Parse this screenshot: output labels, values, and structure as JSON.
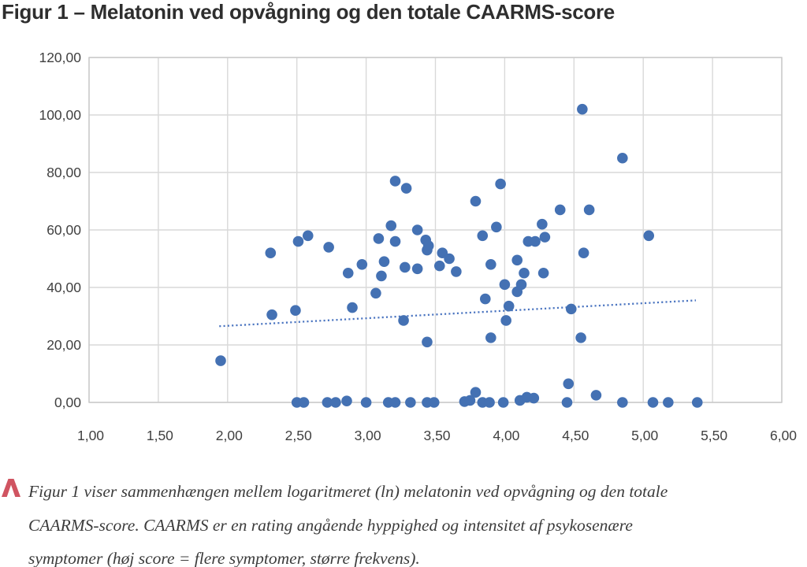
{
  "title": "Figur 1 – Melatonin ved opvågning og den totale CAARMS-score",
  "caption": {
    "marker_icon": "caret-up",
    "lines": [
      "Figur 1 viser sammenhængen mellem logaritmeret (ln) melatonin ved opvågning og den totale",
      "CAARMS-score. CAARMS er en rating angående hyppighed og intensitet af psykosenære",
      "symptomer (høj score = flere symptomer, større frekvens)."
    ]
  },
  "colors": {
    "point": "#4471b3",
    "trend": "#4a74c0",
    "grid": "#d9d9d9",
    "frame": "#c9c9c9",
    "axis_text": "#404040",
    "title_text": "#2e2e2e",
    "caption_text": "#3c3c3c",
    "caret_red": "#d05461"
  },
  "chart_data": {
    "type": "scatter",
    "title": "Figur 1 – Melatonin ved opvågning og den totale CAARMS-score",
    "xlabel": "",
    "ylabel": "",
    "xlim": [
      1.0,
      6.0
    ],
    "ylim": [
      0,
      120
    ],
    "grid": true,
    "legend": "none",
    "x_ticks": [
      {
        "v": 1.0,
        "label": "1,00"
      },
      {
        "v": 1.5,
        "label": "1,50"
      },
      {
        "v": 2.0,
        "label": "2,00"
      },
      {
        "v": 2.5,
        "label": "2,50"
      },
      {
        "v": 3.0,
        "label": "3,00"
      },
      {
        "v": 3.5,
        "label": "3,50"
      },
      {
        "v": 4.0,
        "label": "4,00"
      },
      {
        "v": 4.5,
        "label": "4,50"
      },
      {
        "v": 5.0,
        "label": "5,00"
      },
      {
        "v": 5.5,
        "label": "5,50"
      },
      {
        "v": 6.0,
        "label": "6,00"
      }
    ],
    "y_ticks": [
      {
        "v": 0,
        "label": "0,00"
      },
      {
        "v": 20,
        "label": "20,00"
      },
      {
        "v": 40,
        "label": "40,00"
      },
      {
        "v": 60,
        "label": "60,00"
      },
      {
        "v": 80,
        "label": "80,00"
      },
      {
        "v": 100,
        "label": "100,00"
      },
      {
        "v": 120,
        "label": "120,00"
      }
    ],
    "points": [
      [
        1.95,
        14.5
      ],
      [
        2.31,
        52
      ],
      [
        2.32,
        30.5
      ],
      [
        2.49,
        32
      ],
      [
        2.5,
        0
      ],
      [
        2.51,
        56
      ],
      [
        2.55,
        0
      ],
      [
        2.58,
        58
      ],
      [
        2.72,
        0
      ],
      [
        2.73,
        54
      ],
      [
        2.78,
        0
      ],
      [
        2.86,
        0.5
      ],
      [
        2.87,
        45
      ],
      [
        2.9,
        33
      ],
      [
        2.97,
        48
      ],
      [
        3.0,
        0
      ],
      [
        3.07,
        38
      ],
      [
        3.09,
        57
      ],
      [
        3.11,
        44
      ],
      [
        3.13,
        49
      ],
      [
        3.16,
        0
      ],
      [
        3.18,
        61.5
      ],
      [
        3.21,
        77
      ],
      [
        3.21,
        56
      ],
      [
        3.21,
        0
      ],
      [
        3.27,
        28.5
      ],
      [
        3.28,
        47
      ],
      [
        3.29,
        74.5
      ],
      [
        3.32,
        0
      ],
      [
        3.37,
        60
      ],
      [
        3.37,
        46.5
      ],
      [
        3.43,
        56.5
      ],
      [
        3.44,
        53
      ],
      [
        3.44,
        21
      ],
      [
        3.44,
        0
      ],
      [
        3.45,
        54.5
      ],
      [
        3.49,
        0
      ],
      [
        3.53,
        47.5
      ],
      [
        3.55,
        52
      ],
      [
        3.6,
        50
      ],
      [
        3.65,
        45.5
      ],
      [
        3.71,
        0.3
      ],
      [
        3.75,
        0.7
      ],
      [
        3.79,
        70
      ],
      [
        3.79,
        3.5
      ],
      [
        3.84,
        58
      ],
      [
        3.84,
        0
      ],
      [
        3.86,
        36
      ],
      [
        3.89,
        0
      ],
      [
        3.9,
        48
      ],
      [
        3.9,
        22.5
      ],
      [
        3.94,
        61
      ],
      [
        3.97,
        76
      ],
      [
        3.99,
        0
      ],
      [
        4.0,
        41
      ],
      [
        4.01,
        28.5
      ],
      [
        4.03,
        33.5
      ],
      [
        4.09,
        49.5
      ],
      [
        4.09,
        38.5
      ],
      [
        4.11,
        0.7
      ],
      [
        4.12,
        41
      ],
      [
        4.14,
        45
      ],
      [
        4.16,
        1.8
      ],
      [
        4.17,
        56
      ],
      [
        4.21,
        1.5
      ],
      [
        4.22,
        56
      ],
      [
        4.27,
        62
      ],
      [
        4.28,
        45
      ],
      [
        4.29,
        57.5
      ],
      [
        4.4,
        67
      ],
      [
        4.45,
        0
      ],
      [
        4.46,
        6.5
      ],
      [
        4.48,
        32.5
      ],
      [
        4.55,
        22.5
      ],
      [
        4.56,
        102
      ],
      [
        4.57,
        52
      ],
      [
        4.61,
        67
      ],
      [
        4.66,
        2.5
      ],
      [
        4.85,
        85
      ],
      [
        4.85,
        0
      ],
      [
        5.04,
        58
      ],
      [
        5.07,
        0
      ],
      [
        5.18,
        0
      ],
      [
        5.39,
        0
      ]
    ],
    "trendline": {
      "style": "dotted",
      "x1": 1.94,
      "y1": 26.5,
      "x2": 5.38,
      "y2": 35.5
    }
  }
}
